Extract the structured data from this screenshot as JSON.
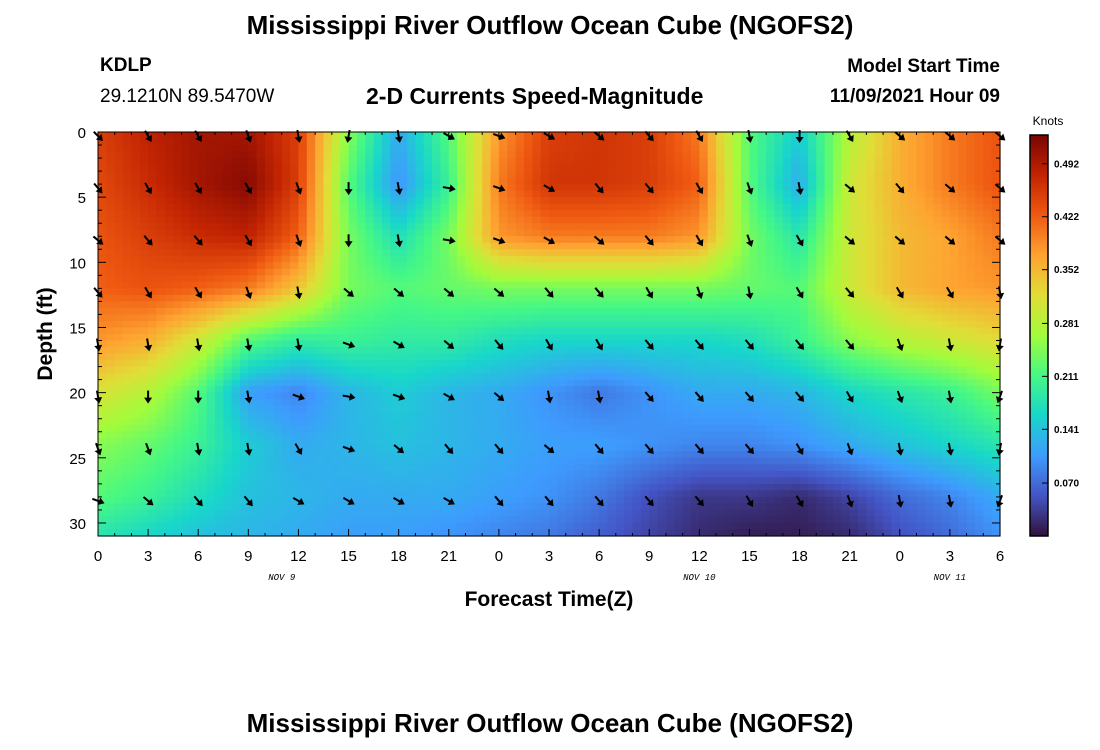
{
  "title": "Mississippi River Outflow Ocean Cube (NGOFS2)",
  "title_repeat": "Mississippi River Outflow Ocean Cube (NGOFS2)",
  "station": "KDLP",
  "coordinates": "29.1210N  89.5470W",
  "subtitle": "2-D Currents Speed-Magnitude",
  "model_start_label": "Model Start Time",
  "model_start_value": "11/09/2021 Hour 09",
  "chart_data": {
    "type": "heatmap",
    "title": "2-D Currents Speed-Magnitude",
    "xlabel": "Forecast Time(Z)",
    "ylabel": "Depth (ft)",
    "x_range_hours": [
      0,
      54
    ],
    "y_range_ft": [
      0,
      31
    ],
    "y_inverted": true,
    "x_tick_labels": [
      "0",
      "3",
      "6",
      "9",
      "12",
      "15",
      "18",
      "21",
      "0",
      "3",
      "6",
      "9",
      "12",
      "15",
      "18",
      "21",
      "0",
      "3",
      "6"
    ],
    "date_labels": [
      {
        "text": "NOV 9",
        "hour": 11
      },
      {
        "text": "NOV 10",
        "hour": 36
      },
      {
        "text": "NOV 11",
        "hour": 51
      }
    ],
    "y_tick_labels": [
      "0",
      "5",
      "10",
      "15",
      "20",
      "25",
      "30"
    ],
    "y_tick_values": [
      0,
      5,
      10,
      15,
      20,
      25,
      30
    ],
    "colorbar": {
      "units": "Knots",
      "range": [
        0.0,
        0.53
      ],
      "tick_labels": [
        "0.492",
        "0.422",
        "0.352",
        "0.281",
        "0.211",
        "0.141",
        "0.070"
      ],
      "tick_values": [
        0.492,
        0.422,
        0.352,
        0.281,
        0.211,
        0.141,
        0.07
      ],
      "colors": [
        "#30123b",
        "#4454c4",
        "#3e9bfe",
        "#18d6cb",
        "#46f884",
        "#a2fc3c",
        "#e1dd37",
        "#fea331",
        "#ef5911",
        "#c22402",
        "#7a0403"
      ]
    },
    "depths_ft": [
      0,
      4,
      8,
      12,
      16,
      20,
      24,
      28,
      31
    ],
    "hours": [
      0,
      3,
      6,
      9,
      12,
      15,
      18,
      21,
      24,
      27,
      30,
      33,
      36,
      39,
      42,
      45,
      48,
      51,
      54
    ],
    "speed_knots": [
      [
        0.45,
        0.48,
        0.5,
        0.5,
        0.45,
        0.25,
        0.12,
        0.22,
        0.38,
        0.45,
        0.46,
        0.45,
        0.4,
        0.22,
        0.15,
        0.28,
        0.36,
        0.4,
        0.43
      ],
      [
        0.44,
        0.47,
        0.5,
        0.52,
        0.45,
        0.22,
        0.1,
        0.2,
        0.4,
        0.46,
        0.46,
        0.45,
        0.42,
        0.22,
        0.12,
        0.3,
        0.36,
        0.4,
        0.43
      ],
      [
        0.43,
        0.45,
        0.47,
        0.48,
        0.42,
        0.24,
        0.17,
        0.24,
        0.38,
        0.4,
        0.4,
        0.4,
        0.38,
        0.24,
        0.18,
        0.3,
        0.35,
        0.37,
        0.4
      ],
      [
        0.42,
        0.43,
        0.42,
        0.4,
        0.34,
        0.24,
        0.22,
        0.23,
        0.24,
        0.24,
        0.24,
        0.24,
        0.24,
        0.23,
        0.22,
        0.3,
        0.35,
        0.37,
        0.38
      ],
      [
        0.38,
        0.36,
        0.3,
        0.22,
        0.19,
        0.2,
        0.19,
        0.19,
        0.17,
        0.16,
        0.16,
        0.16,
        0.16,
        0.17,
        0.2,
        0.25,
        0.28,
        0.3,
        0.32
      ],
      [
        0.31,
        0.28,
        0.22,
        0.11,
        0.09,
        0.13,
        0.15,
        0.13,
        0.12,
        0.1,
        0.08,
        0.1,
        0.12,
        0.12,
        0.13,
        0.16,
        0.18,
        0.2,
        0.24
      ],
      [
        0.25,
        0.23,
        0.2,
        0.15,
        0.12,
        0.13,
        0.14,
        0.13,
        0.12,
        0.11,
        0.11,
        0.1,
        0.09,
        0.09,
        0.1,
        0.12,
        0.14,
        0.16,
        0.18
      ],
      [
        0.22,
        0.2,
        0.17,
        0.14,
        0.13,
        0.12,
        0.12,
        0.12,
        0.11,
        0.1,
        0.08,
        0.05,
        0.03,
        0.03,
        0.02,
        0.04,
        0.07,
        0.09,
        0.12
      ],
      [
        0.18,
        0.16,
        0.14,
        0.13,
        0.12,
        0.11,
        0.11,
        0.1,
        0.09,
        0.08,
        0.06,
        0.04,
        0.02,
        0.01,
        0.01,
        0.02,
        0.05,
        0.07,
        0.1
      ]
    ],
    "vector_depths_ft": [
      0,
      4,
      8,
      12,
      16,
      20,
      24,
      28
    ],
    "vector_hours": [
      0,
      3,
      6,
      9,
      12,
      15,
      18,
      21,
      24,
      27,
      30,
      33,
      36,
      39,
      42,
      45,
      48,
      51,
      54
    ],
    "vector_direction_deg": [
      [
        135,
        150,
        150,
        160,
        170,
        190,
        170,
        120,
        110,
        120,
        130,
        140,
        150,
        170,
        180,
        150,
        130,
        130,
        130
      ],
      [
        140,
        150,
        150,
        150,
        160,
        180,
        170,
        100,
        110,
        120,
        140,
        140,
        150,
        160,
        170,
        130,
        140,
        130,
        130
      ],
      [
        130,
        140,
        140,
        150,
        160,
        180,
        170,
        100,
        110,
        120,
        130,
        140,
        150,
        160,
        150,
        130,
        130,
        130,
        130
      ],
      [
        140,
        150,
        150,
        160,
        170,
        130,
        130,
        130,
        130,
        140,
        140,
        150,
        160,
        170,
        150,
        140,
        150,
        150,
        170
      ],
      [
        170,
        170,
        170,
        170,
        170,
        110,
        120,
        130,
        140,
        150,
        150,
        140,
        140,
        140,
        140,
        140,
        160,
        170,
        190
      ],
      [
        170,
        180,
        180,
        170,
        110,
        100,
        110,
        120,
        130,
        170,
        170,
        140,
        140,
        140,
        140,
        150,
        160,
        170,
        200
      ],
      [
        160,
        160,
        170,
        170,
        150,
        110,
        130,
        140,
        140,
        130,
        140,
        140,
        140,
        140,
        150,
        160,
        170,
        170,
        190
      ],
      [
        110,
        130,
        140,
        140,
        120,
        120,
        120,
        120,
        140,
        140,
        140,
        140,
        140,
        150,
        150,
        160,
        170,
        170,
        200
      ]
    ]
  }
}
